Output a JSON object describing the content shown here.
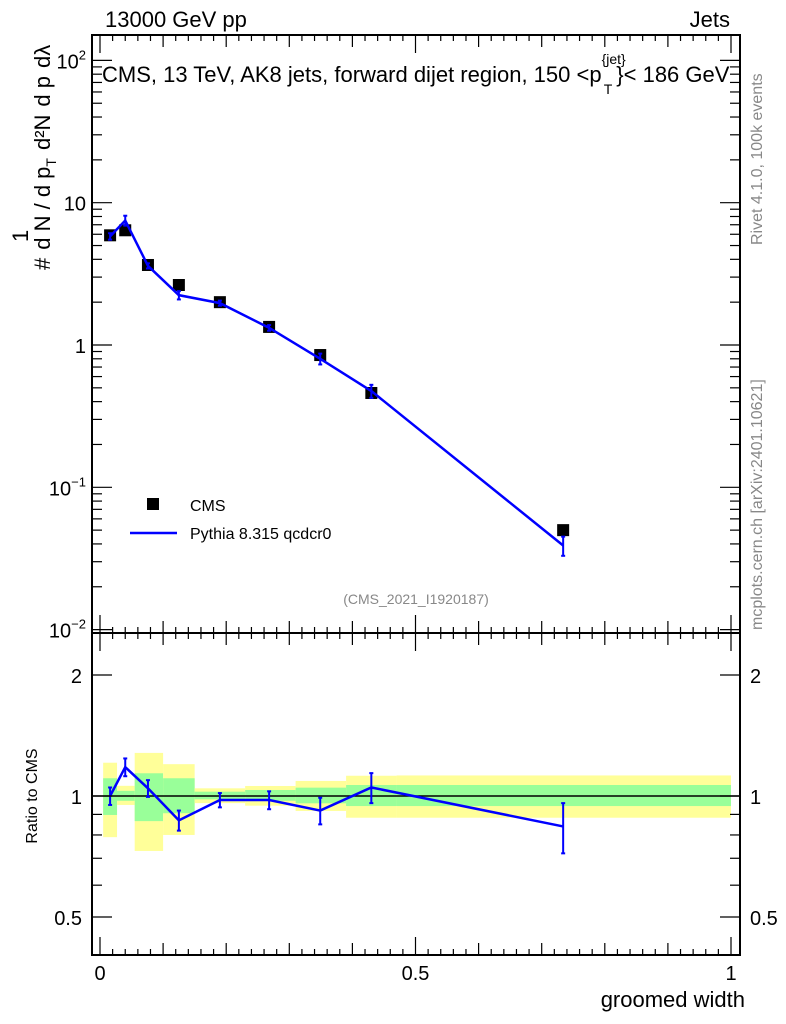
{
  "header": {
    "left": "13000 GeV pp",
    "right": "Jets"
  },
  "side_labels": {
    "rivet": "Rivet 4.1.0,  100k events",
    "mcplots": "mcplots.cern.ch [arXiv:2401.10621]"
  },
  "colors": {
    "data": "#000000",
    "mc": "#0000ff",
    "band_outer": "#ffff99",
    "band_inner": "#99ff99"
  },
  "chart_data": [
    {
      "type": "scatter",
      "title": "CMS, 13 TeV, AK8 jets, forward dijet region, 150 <p_T^{jet}< 186 GeV",
      "title_parts": {
        "main": "CMS, 13 TeV, AK8 jets, forward dijet region, 150 <p",
        "sup": "{jet}",
        "sub": "T",
        "end": "}< 186 GeV"
      },
      "ylabel": "1/dN/dp_T d²N/dp_T dλ",
      "ylabel_parts": {
        "hash": "#",
        "one": "1",
        "den": "d N / d p",
        "T": "T",
        "num": "d²N",
        "den2": "d p",
        "dl": "dλ"
      },
      "yscale": "log",
      "ylim": [
        0.01,
        150
      ],
      "xlim": [
        -0.01,
        1.02
      ],
      "yticks": [
        {
          "v": 100,
          "label": "10",
          "sup": "2"
        },
        {
          "v": 10,
          "label": "10",
          "sup": ""
        },
        {
          "v": 1,
          "label": "1",
          "sup": ""
        },
        {
          "v": 0.1,
          "label": "10",
          "sup": "−1"
        },
        {
          "v": 0.01,
          "label": "10",
          "sup": "−2"
        }
      ],
      "legend": {
        "position": "bottom-left",
        "entries": [
          "CMS",
          "Pythia 8.315 qcdcr0"
        ]
      },
      "annotation": "(CMS_2021_I1920187)",
      "x": [
        0.016,
        0.04,
        0.076,
        0.125,
        0.19,
        0.268,
        0.349,
        0.43,
        0.734
      ],
      "series": [
        {
          "name": "CMS",
          "values": [
            5.9,
            6.4,
            3.65,
            2.64,
            2.0,
            1.34,
            0.85,
            0.46,
            0.05
          ]
        },
        {
          "name": "Pythia 8.315 qcdcr0",
          "values": [
            5.8,
            7.5,
            3.6,
            2.24,
            1.97,
            1.32,
            0.8,
            0.475,
            0.039
          ],
          "yerr": [
            0.3,
            0.6,
            0.15,
            0.15,
            0.08,
            0.06,
            0.07,
            0.05,
            0.006
          ]
        }
      ]
    },
    {
      "type": "line",
      "ylabel": "Ratio to CMS",
      "xlabel": "groomed width",
      "yscale": "log",
      "ylim": [
        0.4,
        2.5
      ],
      "xlim": [
        -0.01,
        1.02
      ],
      "yticks": [
        {
          "v": 2,
          "label": "2"
        },
        {
          "v": 1,
          "label": "1"
        },
        {
          "v": 0.5,
          "label": "0.5"
        }
      ],
      "xticks": [
        {
          "v": 0,
          "label": "0"
        },
        {
          "v": 0.5,
          "label": "0.5"
        },
        {
          "v": 1,
          "label": "1"
        }
      ],
      "bin_edges": [
        0.005,
        0.027,
        0.055,
        0.1,
        0.15,
        0.23,
        0.31,
        0.39,
        0.47,
        1.0
      ],
      "band_outer": [
        [
          0.79,
          1.21
        ],
        [
          0.95,
          1.06
        ],
        [
          0.73,
          1.28
        ],
        [
          0.8,
          1.2
        ],
        [
          0.96,
          1.045
        ],
        [
          0.946,
          1.059
        ],
        [
          0.918,
          1.09
        ],
        [
          0.883,
          1.123
        ],
        [
          0.883,
          1.125
        ]
      ],
      "band_inner": [
        [
          0.897,
          1.107
        ],
        [
          0.973,
          1.03
        ],
        [
          0.866,
          1.139
        ],
        [
          0.906,
          1.107
        ],
        [
          0.981,
          1.025
        ],
        [
          0.973,
          1.035
        ],
        [
          0.959,
          1.049
        ],
        [
          0.944,
          1.065
        ],
        [
          0.944,
          1.065
        ]
      ],
      "x": [
        0.016,
        0.04,
        0.076,
        0.125,
        0.19,
        0.268,
        0.349,
        0.43,
        0.734
      ],
      "series": [
        {
          "name": "Pythia 8.315 qcdcr0",
          "values": [
            1.0,
            1.18,
            1.045,
            0.87,
            0.977,
            0.977,
            0.92,
            1.05,
            0.84
          ],
          "yerr": [
            0.05,
            0.06,
            0.05,
            0.05,
            0.04,
            0.05,
            0.07,
            0.09,
            0.12
          ]
        }
      ]
    }
  ]
}
